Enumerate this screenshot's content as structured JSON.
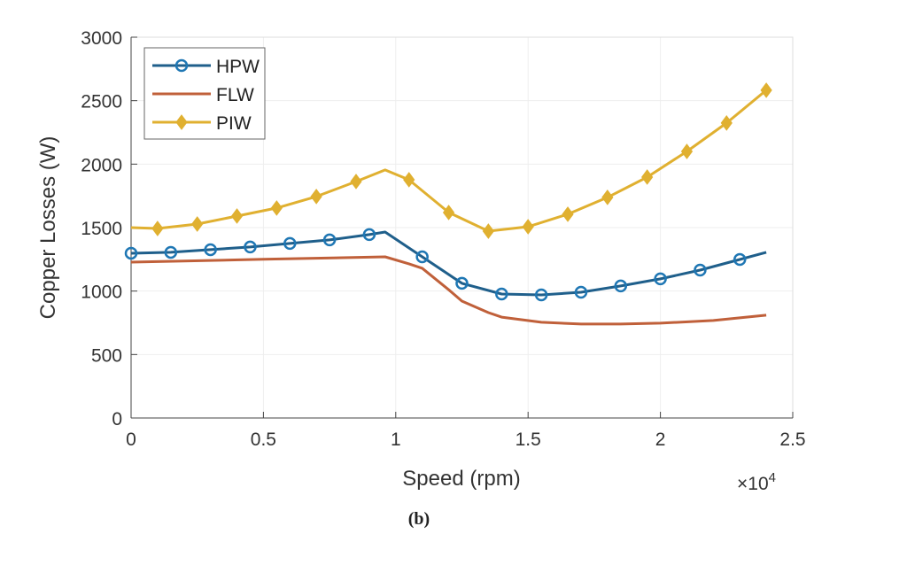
{
  "chart_data": {
    "type": "line",
    "caption": "(b)",
    "xlabel": "Speed (rpm)",
    "ylabel": "Copper Losses (W)",
    "x_multiplier": "×10",
    "x_multiplier_exp": "4",
    "xlim": [
      0,
      25000
    ],
    "ylim": [
      0,
      3000
    ],
    "xticks": [
      0,
      5000,
      10000,
      15000,
      20000,
      25000
    ],
    "xtick_labels": [
      "0",
      "0.5",
      "1",
      "1.5",
      "2",
      "2.5"
    ],
    "yticks": [
      0,
      500,
      1000,
      1500,
      2000,
      2500,
      3000
    ],
    "ytick_labels": [
      "0",
      "500",
      "1000",
      "1500",
      "2000",
      "2500",
      "3000"
    ],
    "grid": true,
    "legend_position": "top-left",
    "series": [
      {
        "name": "HPW",
        "color": "#1f77b4",
        "marker": "circle",
        "points": [
          [
            0,
            1298
          ],
          [
            1500,
            1305
          ],
          [
            3000,
            1326
          ],
          [
            4500,
            1347
          ],
          [
            6000,
            1375
          ],
          [
            7500,
            1403
          ],
          [
            9000,
            1445
          ],
          [
            9600,
            1465
          ],
          [
            11000,
            1270
          ],
          [
            12500,
            1061
          ],
          [
            14000,
            977
          ],
          [
            15500,
            970
          ],
          [
            17000,
            991
          ],
          [
            18500,
            1040
          ],
          [
            20000,
            1096
          ],
          [
            21500,
            1165
          ],
          [
            23000,
            1249
          ],
          [
            24000,
            1305
          ]
        ],
        "marker_x": [
          0,
          1500,
          3000,
          4500,
          6000,
          7500,
          9000,
          11000,
          12500,
          14000,
          15500,
          17000,
          18500,
          20000,
          21500,
          23000
        ]
      },
      {
        "name": "FLW",
        "color": "#c0603a",
        "marker": "none",
        "points": [
          [
            0,
            1228
          ],
          [
            5000,
            1250
          ],
          [
            9600,
            1270
          ],
          [
            10500,
            1215
          ],
          [
            11000,
            1180
          ],
          [
            12000,
            1010
          ],
          [
            12500,
            921
          ],
          [
            13500,
            830
          ],
          [
            14000,
            795
          ],
          [
            15500,
            754
          ],
          [
            17000,
            740
          ],
          [
            18500,
            740
          ],
          [
            20000,
            747
          ],
          [
            22000,
            768
          ],
          [
            24000,
            810
          ]
        ]
      },
      {
        "name": "PIW",
        "color": "#e0b030",
        "marker": "diamond",
        "points": [
          [
            0,
            1500
          ],
          [
            1000,
            1493
          ],
          [
            2500,
            1528
          ],
          [
            4000,
            1591
          ],
          [
            5500,
            1654
          ],
          [
            7000,
            1745
          ],
          [
            8500,
            1863
          ],
          [
            9600,
            1954
          ],
          [
            10500,
            1877
          ],
          [
            12000,
            1619
          ],
          [
            13500,
            1472
          ],
          [
            15000,
            1507
          ],
          [
            16500,
            1605
          ],
          [
            18000,
            1738
          ],
          [
            19500,
            1898
          ],
          [
            21000,
            2100
          ],
          [
            22500,
            2324
          ],
          [
            24000,
            2582
          ]
        ],
        "marker_x": [
          1000,
          2500,
          4000,
          5500,
          7000,
          8500,
          10500,
          12000,
          13500,
          15000,
          16500,
          18000,
          19500,
          21000,
          22500,
          24000
        ]
      }
    ]
  }
}
